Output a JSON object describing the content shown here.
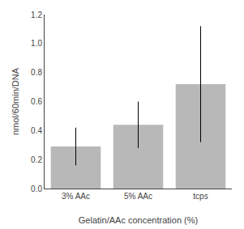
{
  "chart_data": {
    "type": "bar",
    "categories": [
      "3% AAc",
      "5% AAc",
      "tcps"
    ],
    "values": [
      0.29,
      0.44,
      0.72
    ],
    "errors": [
      0.13,
      0.16,
      0.4
    ],
    "color": "#b8b8b8",
    "xlabel": "Gelatin/AAc concentration (%)",
    "ylabel": "nmol/60min/DNA",
    "ylim": [
      0,
      1.2
    ],
    "yticks": [
      {
        "value": 0.0,
        "label": "0.0"
      },
      0.2,
      0.4,
      0.6,
      0.8,
      {
        "value": 1.0,
        "label": "1.0"
      },
      1.2
    ],
    "grid": false
  }
}
